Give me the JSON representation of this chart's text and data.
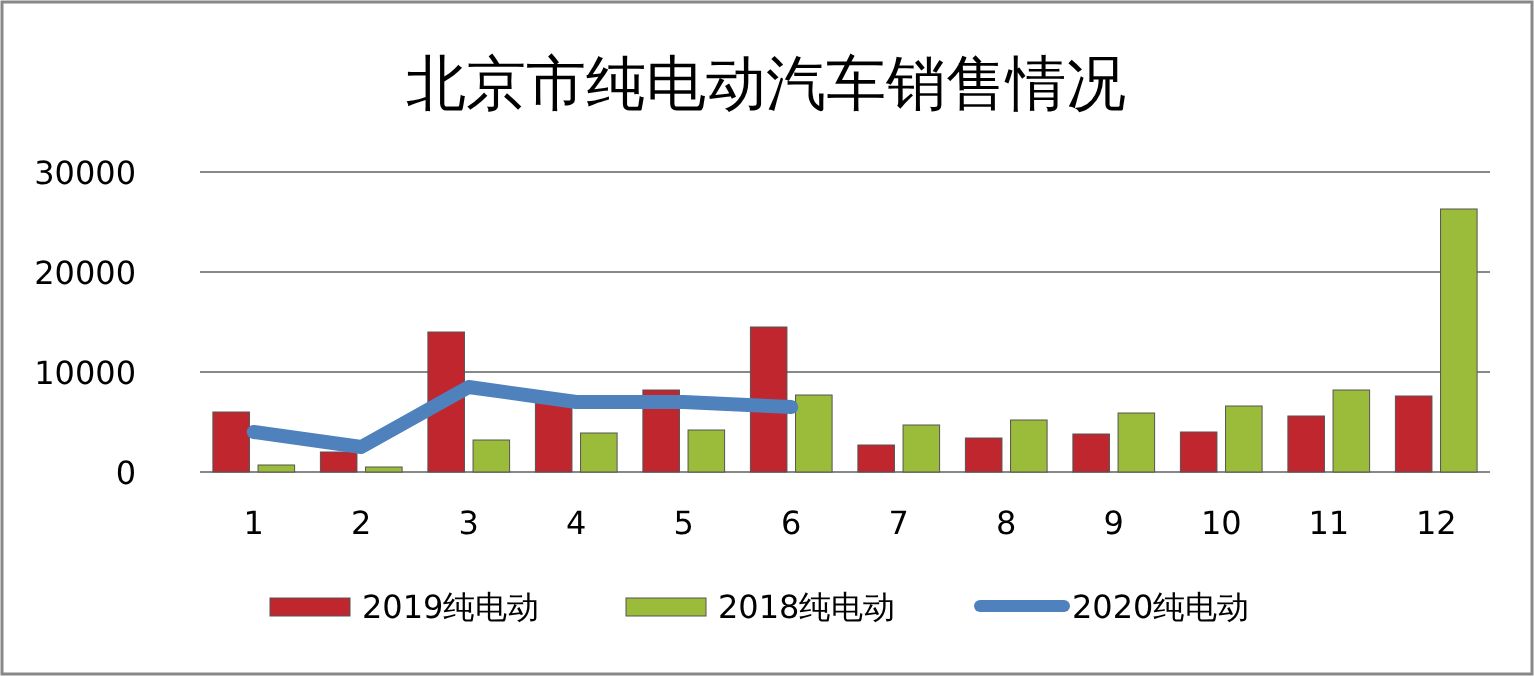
{
  "chart_data": {
    "type": "bar",
    "title": "北京市纯电动汽车销售情况",
    "categories": [
      "1",
      "2",
      "3",
      "4",
      "5",
      "6",
      "7",
      "8",
      "9",
      "10",
      "11",
      "12"
    ],
    "series": [
      {
        "name": "2019纯电动",
        "color": "#c0262d",
        "values": [
          6000,
          2000,
          14000,
          7000,
          8200,
          14500,
          2700,
          3400,
          3800,
          4000,
          5600,
          7600
        ]
      },
      {
        "name": "2018纯电动",
        "color": "#9bbb3b",
        "values": [
          700,
          500,
          3200,
          3900,
          4200,
          7700,
          4700,
          5200,
          5900,
          6600,
          8200,
          26300
        ]
      },
      {
        "name": "2020纯电动",
        "color": "#4f81bd",
        "type": "line",
        "values": [
          4000,
          2500,
          8500,
          7000,
          7000,
          6500,
          null,
          null,
          null,
          null,
          null,
          null
        ]
      }
    ],
    "ylim": [
      0,
      30000
    ],
    "yticks": [
      0,
      10000,
      20000,
      30000
    ],
    "grid": "y",
    "legend": "bottom"
  }
}
